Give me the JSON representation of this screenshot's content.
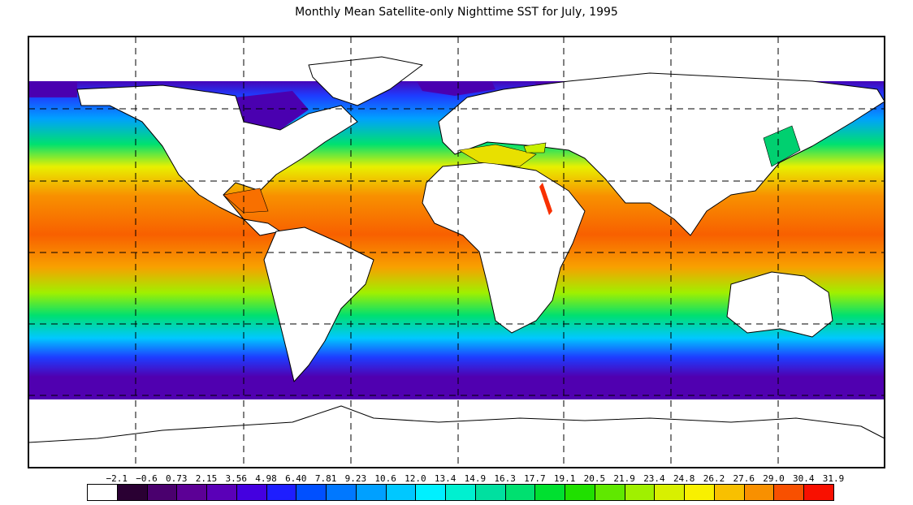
{
  "title": "Monthly Mean Satellite-only Nighttime SST for July, 1995",
  "legend": {
    "tick_labels": [
      "−2.1",
      "−0.6",
      "0.73",
      "2.15",
      "3.56",
      "4.98",
      "6.40",
      "7.81",
      "9.23",
      "10.6",
      "12.0",
      "13.4",
      "14.9",
      "16.3",
      "17.7",
      "19.1",
      "20.5",
      "21.9",
      "23.4",
      "24.8",
      "26.2",
      "27.6",
      "29.0",
      "30.4",
      "31.9"
    ],
    "colors": [
      "#ffffff",
      "#2a0033",
      "#4a006e",
      "#5c0096",
      "#5a00b8",
      "#4400e0",
      "#1e1eff",
      "#0050ff",
      "#0078ff",
      "#00a0ff",
      "#00c8ff",
      "#00f0ff",
      "#00f0d0",
      "#00e0a0",
      "#00e070",
      "#00e030",
      "#20e000",
      "#60e800",
      "#a0f000",
      "#d8f000",
      "#f8f000",
      "#f8c000",
      "#f89000",
      "#f85000",
      "#f81000"
    ]
  },
  "map": {
    "colors": {
      "land": "#ffffff",
      "frame": "#000000",
      "grid": "#000000",
      "ice_polar": "#4a0090",
      "cold": "#2a2aff",
      "cool": "#00b4ff",
      "mid": "#00e070",
      "warm": "#f0f000",
      "warmer": "#f89000",
      "hot": "#f85000",
      "hottest": "#f82000"
    }
  }
}
